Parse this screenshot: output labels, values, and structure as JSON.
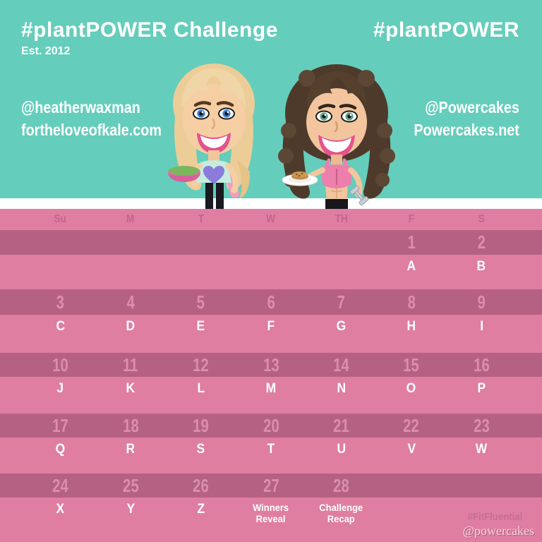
{
  "header": {
    "title": "#plantPOWER Challenge",
    "est": "Est. 2012",
    "hashtag": "#plantPOWER",
    "left_handle": "@heatherwaxman",
    "left_site": "fortheloveofkale.com",
    "right_handle": "@Powercakes",
    "right_site": "Powercakes.net"
  },
  "calendar": {
    "day_headers": [
      "Su",
      "M",
      "T",
      "W",
      "TH",
      "F",
      "S"
    ],
    "weeks": [
      {
        "dates": [
          "",
          "",
          "",
          "",
          "",
          "1",
          "2"
        ],
        "labels": [
          "",
          "",
          "",
          "",
          "",
          "A",
          "B"
        ]
      },
      {
        "dates": [
          "3",
          "4",
          "5",
          "6",
          "7",
          "8",
          "9"
        ],
        "labels": [
          "C",
          "D",
          "E",
          "F",
          "G",
          "H",
          "I"
        ]
      },
      {
        "dates": [
          "10",
          "11",
          "12",
          "13",
          "14",
          "15",
          "16"
        ],
        "labels": [
          "J",
          "K",
          "L",
          "M",
          "N",
          "O",
          "P"
        ]
      },
      {
        "dates": [
          "17",
          "18",
          "19",
          "20",
          "21",
          "22",
          "23"
        ],
        "labels": [
          "Q",
          "R",
          "S",
          "T",
          "U",
          "V",
          "W"
        ]
      },
      {
        "dates": [
          "24",
          "25",
          "26",
          "27",
          "28",
          "",
          ""
        ],
        "labels": [
          "X",
          "Y",
          "Z",
          "Winners\nReveal",
          "Challenge\nRecap",
          "",
          ""
        ]
      }
    ]
  },
  "footer": {
    "fitfluential": "#FitFluential",
    "powercakes": "@powercakes"
  },
  "avatars": {
    "left": "blonde-woman-holding-salad-bowl",
    "right": "brunette-woman-holding-pancake-plate-and-dumbbell"
  },
  "colors": {
    "teal": "#65CDBB",
    "white_strip": "#FFFFFF",
    "light_pink": "#DF7EA1",
    "dark_pink": "#B56184",
    "day_header_text": "#C2648D",
    "date_number_text": "#DB8FAC",
    "letter_text": "#FFFFFF",
    "fitfluential_text": "#C76E92",
    "powercakes_text": "#EFD6DF"
  }
}
